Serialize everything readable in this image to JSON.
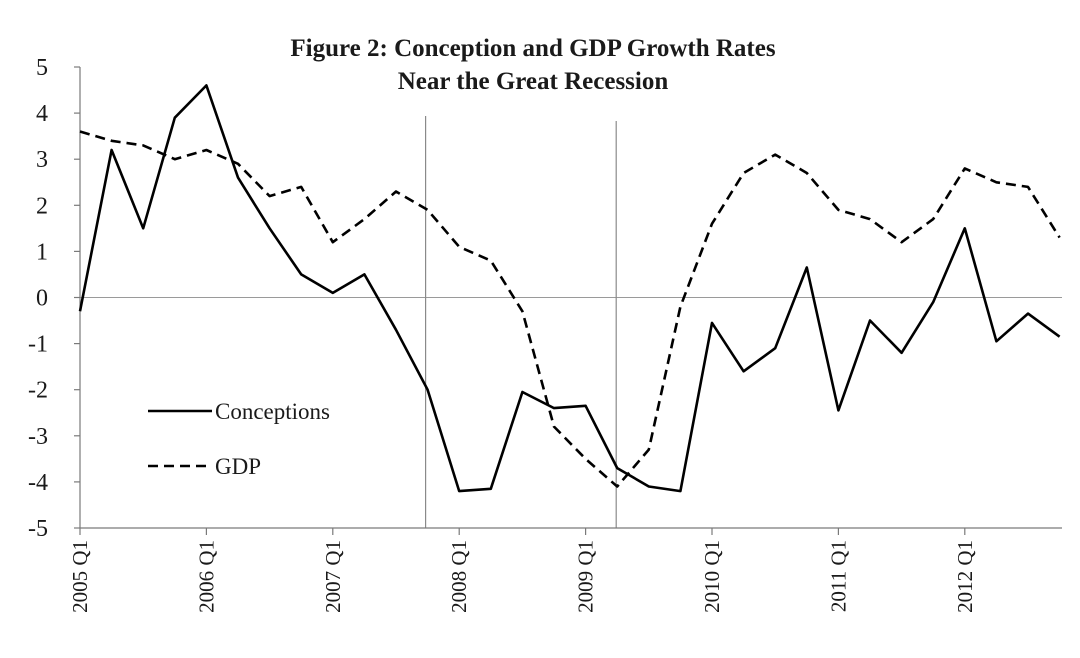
{
  "chart_data": {
    "type": "line",
    "title_lines": [
      "Figure 2: Conception and GDP Growth Rates",
      "Near the Great Recession"
    ],
    "xlabel": "",
    "ylabel": "",
    "ylim": [
      -5,
      5
    ],
    "yticks": [
      5,
      4,
      3,
      2,
      1,
      0,
      -1,
      -2,
      -3,
      -4,
      -5
    ],
    "x_tick_labels": [
      "2005 Q1",
      "2006 Q1",
      "2007 Q1",
      "2008 Q1",
      "2009 Q1",
      "2010 Q1",
      "2011 Q1",
      "2012 Q1"
    ],
    "quarters_per_year": 4,
    "zero_line": true,
    "recession_markers": [
      "2007 Q4",
      "2009 Q2"
    ],
    "legend_position": "lower-left",
    "series": [
      {
        "name": "Conceptions",
        "style": "solid",
        "color": "#000000",
        "values": [
          -0.3,
          3.2,
          1.5,
          3.9,
          4.6,
          2.6,
          1.5,
          0.5,
          0.1,
          0.5,
          -0.7,
          -2.0,
          -4.2,
          -4.15,
          -2.05,
          -2.4,
          -2.35,
          -3.7,
          -4.1,
          -4.2,
          -0.55,
          -1.6,
          -1.1,
          0.65,
          -2.45,
          -0.5,
          -1.2,
          -0.1,
          1.5,
          -0.95,
          -0.35,
          -0.85
        ]
      },
      {
        "name": "GDP",
        "style": "dashed",
        "color": "#000000",
        "values": [
          3.6,
          3.4,
          3.3,
          3.0,
          3.2,
          2.9,
          2.2,
          2.4,
          1.2,
          1.7,
          2.3,
          1.9,
          1.1,
          0.8,
          -0.3,
          -2.8,
          -3.5,
          -4.1,
          -3.3,
          -0.2,
          1.6,
          2.7,
          3.1,
          2.7,
          1.9,
          1.7,
          1.2,
          1.7,
          2.8,
          2.5,
          2.4,
          1.3
        ]
      }
    ]
  }
}
